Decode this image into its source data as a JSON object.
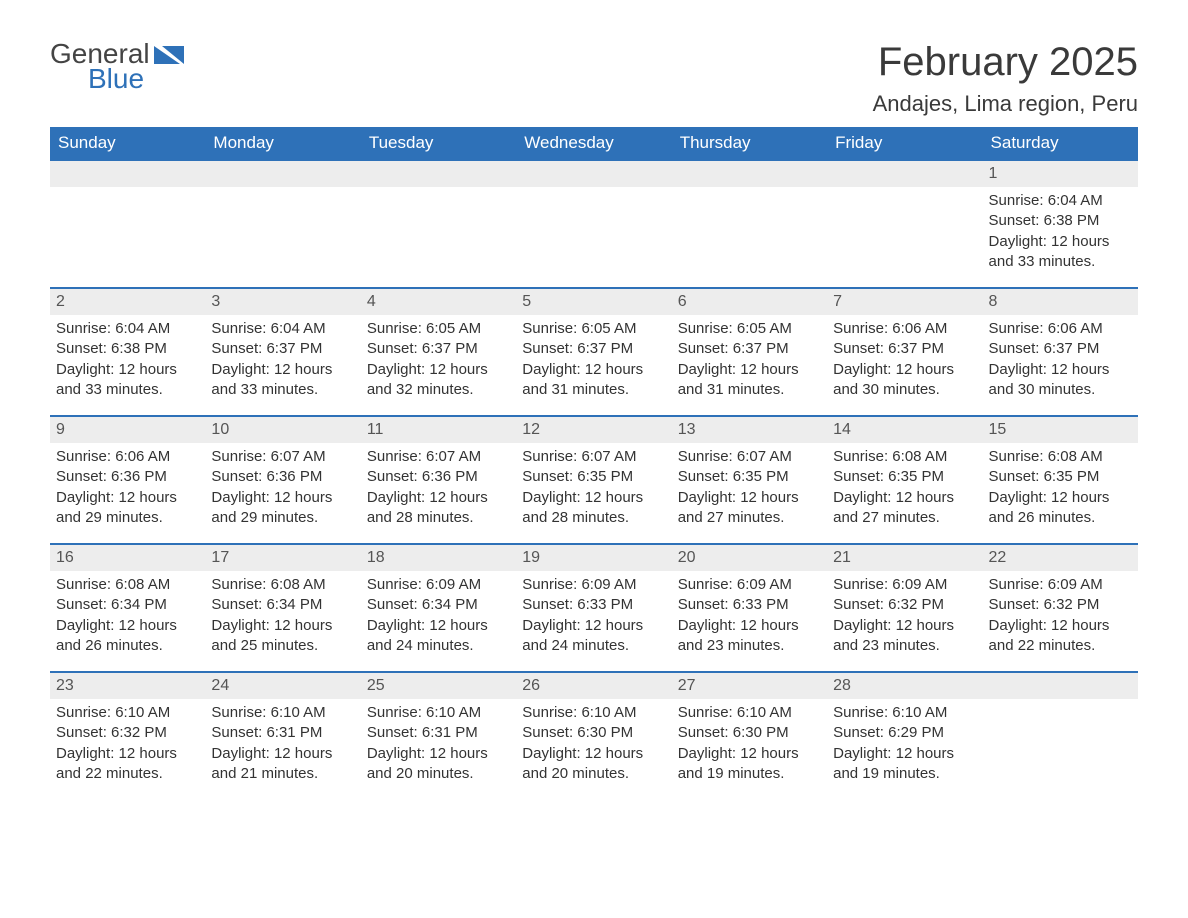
{
  "logo": {
    "general": "General",
    "blue": "Blue",
    "accent_color": "#2e71b8"
  },
  "title": "February 2025",
  "location": "Andajes, Lima region, Peru",
  "colors": {
    "header_bg": "#2e71b8",
    "header_text": "#ffffff",
    "day_header_bg": "#ededed",
    "day_header_border": "#2e71b8",
    "body_text": "#333333",
    "page_bg": "#ffffff"
  },
  "weekdays": [
    "Sunday",
    "Monday",
    "Tuesday",
    "Wednesday",
    "Thursday",
    "Friday",
    "Saturday"
  ],
  "weeks": [
    [
      null,
      null,
      null,
      null,
      null,
      null,
      {
        "n": "1",
        "sunrise": "Sunrise: 6:04 AM",
        "sunset": "Sunset: 6:38 PM",
        "daylight": "Daylight: 12 hours and 33 minutes."
      }
    ],
    [
      {
        "n": "2",
        "sunrise": "Sunrise: 6:04 AM",
        "sunset": "Sunset: 6:38 PM",
        "daylight": "Daylight: 12 hours and 33 minutes."
      },
      {
        "n": "3",
        "sunrise": "Sunrise: 6:04 AM",
        "sunset": "Sunset: 6:37 PM",
        "daylight": "Daylight: 12 hours and 33 minutes."
      },
      {
        "n": "4",
        "sunrise": "Sunrise: 6:05 AM",
        "sunset": "Sunset: 6:37 PM",
        "daylight": "Daylight: 12 hours and 32 minutes."
      },
      {
        "n": "5",
        "sunrise": "Sunrise: 6:05 AM",
        "sunset": "Sunset: 6:37 PM",
        "daylight": "Daylight: 12 hours and 31 minutes."
      },
      {
        "n": "6",
        "sunrise": "Sunrise: 6:05 AM",
        "sunset": "Sunset: 6:37 PM",
        "daylight": "Daylight: 12 hours and 31 minutes."
      },
      {
        "n": "7",
        "sunrise": "Sunrise: 6:06 AM",
        "sunset": "Sunset: 6:37 PM",
        "daylight": "Daylight: 12 hours and 30 minutes."
      },
      {
        "n": "8",
        "sunrise": "Sunrise: 6:06 AM",
        "sunset": "Sunset: 6:37 PM",
        "daylight": "Daylight: 12 hours and 30 minutes."
      }
    ],
    [
      {
        "n": "9",
        "sunrise": "Sunrise: 6:06 AM",
        "sunset": "Sunset: 6:36 PM",
        "daylight": "Daylight: 12 hours and 29 minutes."
      },
      {
        "n": "10",
        "sunrise": "Sunrise: 6:07 AM",
        "sunset": "Sunset: 6:36 PM",
        "daylight": "Daylight: 12 hours and 29 minutes."
      },
      {
        "n": "11",
        "sunrise": "Sunrise: 6:07 AM",
        "sunset": "Sunset: 6:36 PM",
        "daylight": "Daylight: 12 hours and 28 minutes."
      },
      {
        "n": "12",
        "sunrise": "Sunrise: 6:07 AM",
        "sunset": "Sunset: 6:35 PM",
        "daylight": "Daylight: 12 hours and 28 minutes."
      },
      {
        "n": "13",
        "sunrise": "Sunrise: 6:07 AM",
        "sunset": "Sunset: 6:35 PM",
        "daylight": "Daylight: 12 hours and 27 minutes."
      },
      {
        "n": "14",
        "sunrise": "Sunrise: 6:08 AM",
        "sunset": "Sunset: 6:35 PM",
        "daylight": "Daylight: 12 hours and 27 minutes."
      },
      {
        "n": "15",
        "sunrise": "Sunrise: 6:08 AM",
        "sunset": "Sunset: 6:35 PM",
        "daylight": "Daylight: 12 hours and 26 minutes."
      }
    ],
    [
      {
        "n": "16",
        "sunrise": "Sunrise: 6:08 AM",
        "sunset": "Sunset: 6:34 PM",
        "daylight": "Daylight: 12 hours and 26 minutes."
      },
      {
        "n": "17",
        "sunrise": "Sunrise: 6:08 AM",
        "sunset": "Sunset: 6:34 PM",
        "daylight": "Daylight: 12 hours and 25 minutes."
      },
      {
        "n": "18",
        "sunrise": "Sunrise: 6:09 AM",
        "sunset": "Sunset: 6:34 PM",
        "daylight": "Daylight: 12 hours and 24 minutes."
      },
      {
        "n": "19",
        "sunrise": "Sunrise: 6:09 AM",
        "sunset": "Sunset: 6:33 PM",
        "daylight": "Daylight: 12 hours and 24 minutes."
      },
      {
        "n": "20",
        "sunrise": "Sunrise: 6:09 AM",
        "sunset": "Sunset: 6:33 PM",
        "daylight": "Daylight: 12 hours and 23 minutes."
      },
      {
        "n": "21",
        "sunrise": "Sunrise: 6:09 AM",
        "sunset": "Sunset: 6:32 PM",
        "daylight": "Daylight: 12 hours and 23 minutes."
      },
      {
        "n": "22",
        "sunrise": "Sunrise: 6:09 AM",
        "sunset": "Sunset: 6:32 PM",
        "daylight": "Daylight: 12 hours and 22 minutes."
      }
    ],
    [
      {
        "n": "23",
        "sunrise": "Sunrise: 6:10 AM",
        "sunset": "Sunset: 6:32 PM",
        "daylight": "Daylight: 12 hours and 22 minutes."
      },
      {
        "n": "24",
        "sunrise": "Sunrise: 6:10 AM",
        "sunset": "Sunset: 6:31 PM",
        "daylight": "Daylight: 12 hours and 21 minutes."
      },
      {
        "n": "25",
        "sunrise": "Sunrise: 6:10 AM",
        "sunset": "Sunset: 6:31 PM",
        "daylight": "Daylight: 12 hours and 20 minutes."
      },
      {
        "n": "26",
        "sunrise": "Sunrise: 6:10 AM",
        "sunset": "Sunset: 6:30 PM",
        "daylight": "Daylight: 12 hours and 20 minutes."
      },
      {
        "n": "27",
        "sunrise": "Sunrise: 6:10 AM",
        "sunset": "Sunset: 6:30 PM",
        "daylight": "Daylight: 12 hours and 19 minutes."
      },
      {
        "n": "28",
        "sunrise": "Sunrise: 6:10 AM",
        "sunset": "Sunset: 6:29 PM",
        "daylight": "Daylight: 12 hours and 19 minutes."
      },
      null
    ]
  ]
}
